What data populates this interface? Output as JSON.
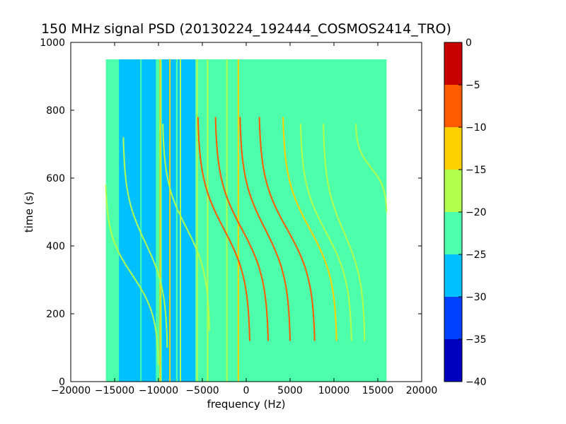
{
  "chart_data": {
    "type": "heatmap",
    "title": "150 MHz signal PSD (20130224_192444_COSMOS2414_TRO)",
    "xlabel": "frequency (Hz)",
    "ylabel": "time (s)",
    "xlim": [
      -20000,
      20000
    ],
    "ylim": [
      0,
      1000
    ],
    "xticks": [
      -20000,
      -15000,
      -10000,
      -5000,
      0,
      5000,
      10000,
      15000,
      20000
    ],
    "xtick_labels": [
      "−20000",
      "−15000",
      "−10000",
      "−5000",
      "0",
      "5000",
      "10000",
      "15000",
      "20000"
    ],
    "yticks": [
      0,
      200,
      400,
      600,
      800,
      1000
    ],
    "ytick_labels": [
      "0",
      "200",
      "400",
      "600",
      "800",
      "1000"
    ],
    "data_extent": {
      "x": [
        -16000,
        16000
      ],
      "y": [
        0,
        950
      ]
    },
    "background_level_db": -22.5,
    "colorbar": {
      "levels": [
        -40,
        -35,
        -30,
        -25,
        -20,
        -15,
        -10,
        -5,
        0
      ],
      "tick_labels": [
        "−40",
        "−35",
        "−30",
        "−25",
        "−20",
        "−15",
        "−10",
        "−5",
        "0"
      ],
      "colors": [
        "#0000c0",
        "#0040ff",
        "#00c0ff",
        "#4dffaa",
        "#b2ff4d",
        "#ffd000",
        "#ff5a00",
        "#c80000"
      ]
    },
    "low_power_bands": [
      {
        "x": [
          -14500,
          -12500
        ],
        "level_db": -27.5
      },
      {
        "x": [
          -12500,
          -10300
        ],
        "level_db": -27.5
      },
      {
        "x": [
          -9600,
          -8000
        ],
        "level_db": -27.5
      },
      {
        "x": [
          -7800,
          -5800
        ],
        "level_db": -27.5
      }
    ],
    "vertical_lines": [
      {
        "x": -12000,
        "level_db": -22.5
      },
      {
        "x": -9800,
        "level_db": -12.5
      },
      {
        "x": -8700,
        "level_db": -12.5
      },
      {
        "x": -7500,
        "level_db": -17.5
      },
      {
        "x": -4400,
        "level_db": -17.5
      },
      {
        "x": -2200,
        "level_db": -17.5
      },
      {
        "x": -900,
        "level_db": -12.5
      },
      {
        "x": -5600,
        "level_db": -17.5
      }
    ],
    "doppler_traces": [
      {
        "x_top": -16000,
        "x_bottom": -10000,
        "t_top": 580,
        "t_bottom": 50,
        "level_db": -17.5
      },
      {
        "x_top": -14000,
        "x_bottom": -9000,
        "t_top": 720,
        "t_bottom": 100,
        "level_db": -17.5
      },
      {
        "x_top": -9500,
        "x_bottom": -4200,
        "t_top": 760,
        "t_bottom": 150,
        "level_db": -17.5
      },
      {
        "x_top": -5500,
        "x_bottom": 400,
        "t_top": 780,
        "t_bottom": 120,
        "level_db": -7.5
      },
      {
        "x_top": -3500,
        "x_bottom": 2500,
        "t_top": 780,
        "t_bottom": 120,
        "level_db": -7.5
      },
      {
        "x_top": -700,
        "x_bottom": 5000,
        "t_top": 780,
        "t_bottom": 120,
        "level_db": -7.5
      },
      {
        "x_top": 1500,
        "x_bottom": 7800,
        "t_top": 780,
        "t_bottom": 120,
        "level_db": -7.5
      },
      {
        "x_top": 4200,
        "x_bottom": 10300,
        "t_top": 780,
        "t_bottom": 120,
        "level_db": -12.5
      },
      {
        "x_top": 6200,
        "x_bottom": 12000,
        "t_top": 760,
        "t_bottom": 120,
        "level_db": -17.5
      },
      {
        "x_top": 8800,
        "x_bottom": 13500,
        "t_top": 760,
        "t_bottom": 120,
        "level_db": -17.5
      },
      {
        "x_top": 12500,
        "x_bottom": 16000,
        "t_top": 760,
        "t_bottom": 500,
        "level_db": -17.5
      }
    ]
  }
}
